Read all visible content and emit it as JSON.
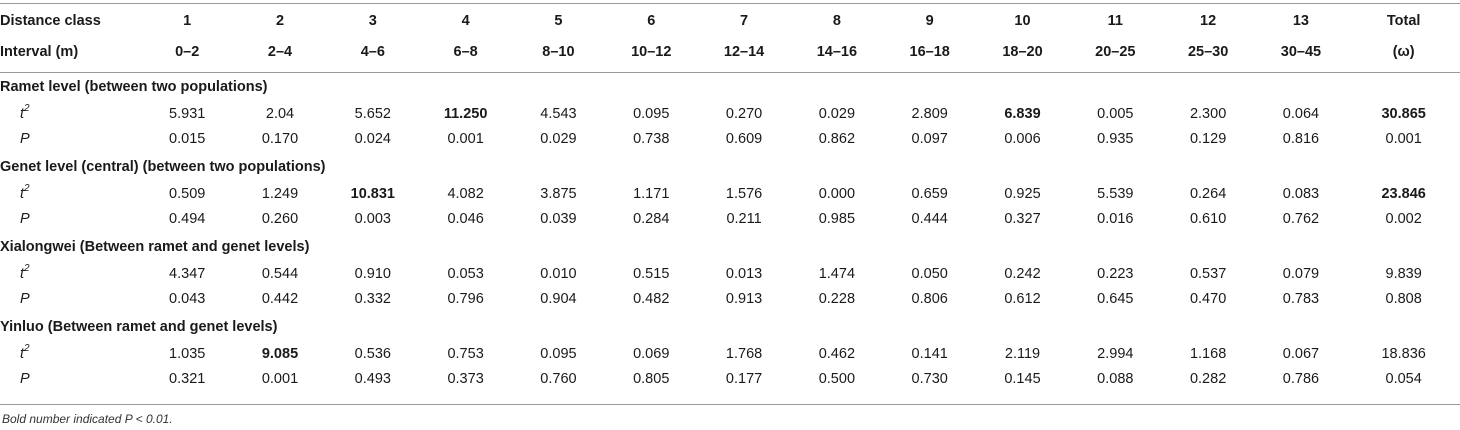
{
  "header": {
    "row1": [
      "Distance class",
      "1",
      "2",
      "3",
      "4",
      "5",
      "6",
      "7",
      "8",
      "9",
      "10",
      "11",
      "12",
      "13",
      "Total"
    ],
    "row2": [
      "Interval (m)",
      "0–2",
      "2–4",
      "4–6",
      "6–8",
      "8–10",
      "10–12",
      "12–14",
      "14–16",
      "16–18",
      "18–20",
      "20–25",
      "25–30",
      "30–45",
      "(ω)"
    ]
  },
  "labels": {
    "t": "t",
    "t_sup": "2",
    "p": "P"
  },
  "sections": [
    {
      "title": "Ramet level (between two populations)",
      "t2": [
        "5.931",
        "2.04",
        "5.652",
        "11.250",
        "4.543",
        "0.095",
        "0.270",
        "0.029",
        "2.809",
        "6.839",
        "0.005",
        "2.300",
        "0.064",
        "30.865"
      ],
      "p": [
        "0.015",
        "0.170",
        "0.024",
        "0.001",
        "0.029",
        "0.738",
        "0.609",
        "0.862",
        "0.097",
        "0.006",
        "0.935",
        "0.129",
        "0.816",
        "0.001"
      ]
    },
    {
      "title": "Genet level (central) (between two populations)",
      "t2": [
        "0.509",
        "1.249",
        "10.831",
        "4.082",
        "3.875",
        "1.171",
        "1.576",
        "0.000",
        "0.659",
        "0.925",
        "5.539",
        "0.264",
        "0.083",
        "23.846"
      ],
      "p": [
        "0.494",
        "0.260",
        "0.003",
        "0.046",
        "0.039",
        "0.284",
        "0.211",
        "0.985",
        "0.444",
        "0.327",
        "0.016",
        "0.610",
        "0.762",
        "0.002"
      ]
    },
    {
      "title": "Xialongwei (Between ramet and genet levels)",
      "t2": [
        "4.347",
        "0.544",
        "0.910",
        "0.053",
        "0.010",
        "0.515",
        "0.013",
        "1.474",
        "0.050",
        "0.242",
        "0.223",
        "0.537",
        "0.079",
        "9.839"
      ],
      "p": [
        "0.043",
        "0.442",
        "0.332",
        "0.796",
        "0.904",
        "0.482",
        "0.913",
        "0.228",
        "0.806",
        "0.612",
        "0.645",
        "0.470",
        "0.783",
        "0.808"
      ]
    },
    {
      "title": "Yinluo (Between ramet and genet levels)",
      "t2": [
        "1.035",
        "9.085",
        "0.536",
        "0.753",
        "0.095",
        "0.069",
        "1.768",
        "0.462",
        "0.141",
        "2.119",
        "2.994",
        "1.168",
        "0.067",
        "18.836"
      ],
      "p": [
        "0.321",
        "0.001",
        "0.493",
        "0.373",
        "0.760",
        "0.805",
        "0.177",
        "0.500",
        "0.730",
        "0.145",
        "0.088",
        "0.282",
        "0.786",
        "0.054"
      ]
    }
  ],
  "footnote": "Bold number indicated P < 0.01."
}
